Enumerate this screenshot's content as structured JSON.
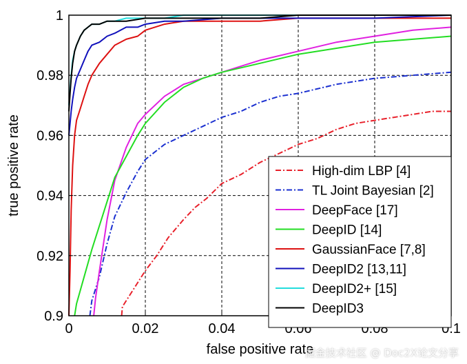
{
  "chart_data": {
    "type": "line",
    "title": "",
    "xlabel": "false positive rate",
    "ylabel": "true positive rate",
    "xlim": [
      0,
      0.1
    ],
    "ylim": [
      0.9,
      1
    ],
    "xticks": [
      0,
      0.02,
      0.04,
      0.06,
      0.08,
      0.1
    ],
    "xtick_labels": [
      "0",
      "0.02",
      "0.04",
      "0.06",
      "0.08",
      "0.1"
    ],
    "yticks": [
      0.9,
      0.92,
      0.94,
      0.96,
      0.98,
      1
    ],
    "ytick_labels": [
      "0.9",
      "0.92",
      "0.94",
      "0.96",
      "0.98",
      "1"
    ],
    "grid": true,
    "legend_position": "bottom-right",
    "series": [
      {
        "name": "High-dim LBP [4]",
        "color": "#e8202a",
        "dash": "dashdot",
        "x": [
          0.0138,
          0.014,
          0.016,
          0.018,
          0.02,
          0.023,
          0.026,
          0.03,
          0.033,
          0.036,
          0.04,
          0.045,
          0.05,
          0.055,
          0.06,
          0.065,
          0.07,
          0.075,
          0.08,
          0.085,
          0.09,
          0.095,
          0.1
        ],
        "y": [
          0.9,
          0.903,
          0.907,
          0.911,
          0.915,
          0.92,
          0.926,
          0.932,
          0.936,
          0.939,
          0.944,
          0.947,
          0.951,
          0.954,
          0.957,
          0.959,
          0.962,
          0.964,
          0.965,
          0.966,
          0.967,
          0.968,
          0.968
        ]
      },
      {
        "name": "TL Joint Bayesian [2]",
        "color": "#1a2fd0",
        "dash": "dashdot",
        "x": [
          0.0055,
          0.006,
          0.008,
          0.01,
          0.012,
          0.015,
          0.018,
          0.02,
          0.025,
          0.03,
          0.035,
          0.04,
          0.045,
          0.05,
          0.055,
          0.06,
          0.07,
          0.08,
          0.09,
          0.1
        ],
        "y": [
          0.9,
          0.905,
          0.913,
          0.924,
          0.933,
          0.941,
          0.948,
          0.952,
          0.957,
          0.96,
          0.963,
          0.966,
          0.968,
          0.971,
          0.973,
          0.974,
          0.977,
          0.979,
          0.98,
          0.981
        ]
      },
      {
        "name": "DeepFace [17]",
        "color": "#e020e0",
        "dash": "solid",
        "x": [
          0.0065,
          0.007,
          0.008,
          0.01,
          0.012,
          0.015,
          0.018,
          0.02,
          0.025,
          0.03,
          0.035,
          0.04,
          0.045,
          0.05,
          0.06,
          0.07,
          0.08,
          0.09,
          0.1
        ],
        "y": [
          0.9,
          0.906,
          0.915,
          0.932,
          0.945,
          0.956,
          0.964,
          0.967,
          0.973,
          0.977,
          0.979,
          0.981,
          0.983,
          0.985,
          0.988,
          0.991,
          0.993,
          0.995,
          0.996
        ]
      },
      {
        "name": "DeepID [14]",
        "color": "#22dd22",
        "dash": "solid",
        "x": [
          0.0015,
          0.002,
          0.004,
          0.006,
          0.008,
          0.01,
          0.012,
          0.015,
          0.018,
          0.02,
          0.025,
          0.03,
          0.035,
          0.04,
          0.05,
          0.06,
          0.07,
          0.08,
          0.09,
          0.1
        ],
        "y": [
          0.9,
          0.904,
          0.913,
          0.922,
          0.93,
          0.938,
          0.946,
          0.953,
          0.96,
          0.964,
          0.971,
          0.976,
          0.979,
          0.981,
          0.984,
          0.987,
          0.989,
          0.991,
          0.992,
          0.993
        ]
      },
      {
        "name": "GaussianFace [7,8]",
        "color": "#dd1111",
        "dash": "solid",
        "x": [
          0,
          0.0003,
          0.0006,
          0.001,
          0.0015,
          0.002,
          0.003,
          0.004,
          0.005,
          0.006,
          0.008,
          0.01,
          0.012,
          0.015,
          0.018,
          0.02,
          0.025,
          0.03,
          0.04,
          0.05,
          0.06,
          0.07,
          0.08,
          0.1
        ],
        "y": [
          0.9,
          0.915,
          0.935,
          0.95,
          0.96,
          0.965,
          0.969,
          0.973,
          0.977,
          0.98,
          0.984,
          0.987,
          0.99,
          0.992,
          0.993,
          0.995,
          0.997,
          0.998,
          0.998,
          0.998,
          0.999,
          0.999,
          0.999,
          0.999
        ]
      },
      {
        "name": "DeepID2 [13,11]",
        "color": "#1010bb",
        "dash": "solid",
        "x": [
          0,
          0.0003,
          0.0006,
          0.001,
          0.0015,
          0.002,
          0.003,
          0.004,
          0.005,
          0.006,
          0.008,
          0.01,
          0.012,
          0.015,
          0.018,
          0.02,
          0.025,
          0.03,
          0.04,
          0.05,
          0.06,
          0.07,
          0.08,
          0.1
        ],
        "y": [
          0.96,
          0.964,
          0.968,
          0.972,
          0.976,
          0.979,
          0.982,
          0.985,
          0.988,
          0.99,
          0.991,
          0.993,
          0.994,
          0.996,
          0.996,
          0.997,
          0.998,
          0.998,
          0.999,
          0.999,
          0.999,
          0.999,
          0.999,
          1
        ]
      },
      {
        "name": "DeepID2+ [15]",
        "color": "#22dddd",
        "dash": "solid",
        "x": [
          0,
          0.0003,
          0.0006,
          0.001,
          0.0015,
          0.002,
          0.003,
          0.004,
          0.005,
          0.006,
          0.008,
          0.01,
          0.012,
          0.015,
          0.018,
          0.02,
          0.025,
          0.03,
          0.04,
          0.05,
          0.06,
          0.08,
          0.1
        ],
        "y": [
          0.97,
          0.975,
          0.98,
          0.985,
          0.988,
          0.99,
          0.993,
          0.995,
          0.996,
          0.997,
          0.997,
          0.998,
          0.998,
          0.999,
          0.999,
          0.999,
          0.999,
          1,
          1,
          1,
          1,
          1,
          1
        ]
      },
      {
        "name": "DeepID3",
        "color": "#000000",
        "dash": "solid",
        "x": [
          0,
          0.0003,
          0.0006,
          0.001,
          0.0015,
          0.002,
          0.003,
          0.004,
          0.005,
          0.006,
          0.008,
          0.01,
          0.012,
          0.015,
          0.02,
          0.03,
          0.04,
          0.05,
          0.06,
          0.08,
          0.1
        ],
        "y": [
          0.968,
          0.974,
          0.979,
          0.984,
          0.988,
          0.99,
          0.993,
          0.995,
          0.996,
          0.997,
          0.997,
          0.998,
          0.998,
          0.998,
          0.999,
          0.999,
          0.999,
          0.999,
          1,
          1,
          1
        ]
      }
    ]
  },
  "watermark": "掘金技术社区 @ Doc2X论文分享"
}
